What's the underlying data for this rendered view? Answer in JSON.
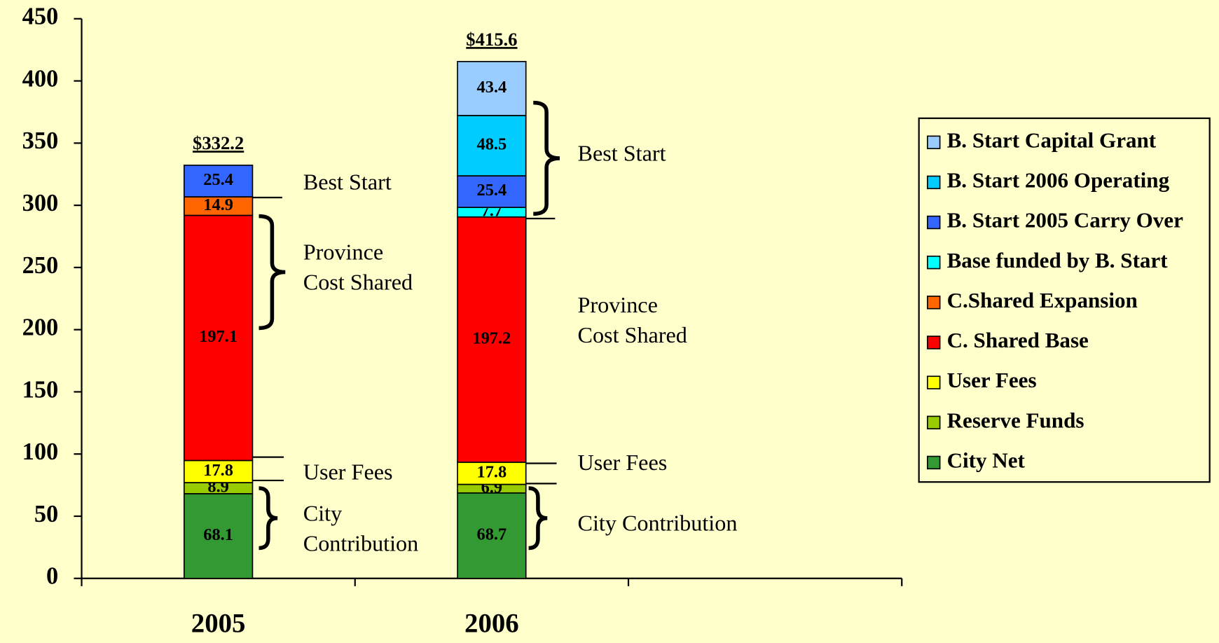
{
  "chart_data": {
    "type": "stacked_bar",
    "categories": [
      "2005",
      "2006",
      null
    ],
    "series": [
      {
        "name": "City Net",
        "color": "#339933",
        "values": [
          68.1,
          68.7,
          null
        ]
      },
      {
        "name": "Reserve Funds",
        "color": "#99cc00",
        "values": [
          8.9,
          6.9,
          null
        ]
      },
      {
        "name": "User Fees",
        "color": "#ffff00",
        "values": [
          17.8,
          17.8,
          null
        ]
      },
      {
        "name": "C. Shared Base",
        "color": "#ff0000",
        "values": [
          197.1,
          197.2,
          null
        ]
      },
      {
        "name": "C.Shared Expansion",
        "color": "#ff6600",
        "values": [
          14.9,
          null,
          null
        ]
      },
      {
        "name": "Base funded by B. Start",
        "color": "#00ffff",
        "values": [
          null,
          7.7,
          null
        ]
      },
      {
        "name": "B. Start 2005 Carry Over",
        "color": "#3366ff",
        "values": [
          25.4,
          25.4,
          null
        ]
      },
      {
        "name": "B. Start 2006 Operating",
        "color": "#00ccff",
        "values": [
          null,
          48.5,
          null
        ]
      },
      {
        "name": "B. Start Capital Grant",
        "color": "#99ccff",
        "values": [
          null,
          43.4,
          null
        ]
      }
    ],
    "totals": [
      332.2,
      415.6,
      null
    ],
    "total_labels": [
      "$332.2",
      "$415.6",
      null
    ],
    "ylim": [
      0,
      450
    ],
    "yticks": [
      0,
      50,
      100,
      150,
      200,
      250,
      300,
      350,
      400,
      450
    ],
    "legend": "right",
    "annotations": [
      {
        "lines": [
          "Best Start"
        ]
      },
      {
        "lines": [
          "Province",
          "Cost Shared"
        ]
      },
      {
        "lines": [
          "User Fees"
        ]
      },
      {
        "lines": [
          "City",
          "Contribution"
        ]
      },
      {
        "lines": [
          "Best Start"
        ]
      },
      {
        "lines": [
          "Province",
          "Cost Shared"
        ]
      },
      {
        "lines": [
          "User Fees"
        ]
      },
      {
        "lines": [
          "City Contribution"
        ]
      }
    ]
  }
}
